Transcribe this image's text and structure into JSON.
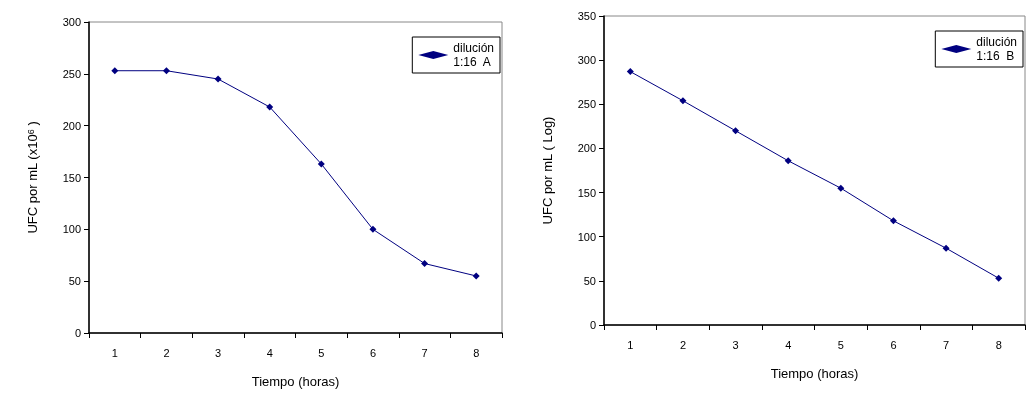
{
  "chart_data": [
    {
      "type": "line",
      "xlabel": "Tiempo (horas)",
      "ylabel": "UFC por mL (x10$^{6}$ )",
      "categories": [
        "1",
        "2",
        "3",
        "4",
        "5",
        "6",
        "7",
        "8"
      ],
      "series": [
        {
          "name": "dilución\n1:16  A",
          "color": "#000080",
          "values": [
            253,
            253,
            245,
            218,
            163,
            100,
            67,
            55
          ]
        }
      ],
      "ylim": [
        0,
        300
      ],
      "yticks": [
        0,
        50,
        100,
        150,
        200,
        250,
        300
      ],
      "grid": false,
      "legend": "top right",
      "marker": "diamond",
      "line_style": "solid"
    },
    {
      "type": "line",
      "xlabel": "Tiempo (horas)",
      "ylabel": "UFC por mL ( Log)",
      "categories": [
        "1",
        "2",
        "3",
        "4",
        "5",
        "6",
        "7",
        "8"
      ],
      "series": [
        {
          "name": "dilución\n1:16  B",
          "color": "#000080",
          "values": [
            287,
            254,
            220,
            186,
            155,
            118,
            87,
            53
          ]
        }
      ],
      "ylim": [
        0,
        350
      ],
      "yticks": [
        0,
        50,
        100,
        150,
        200,
        250,
        300,
        350
      ],
      "grid": false,
      "legend": "top right",
      "marker": "diamond",
      "line_style": "solid"
    }
  ]
}
